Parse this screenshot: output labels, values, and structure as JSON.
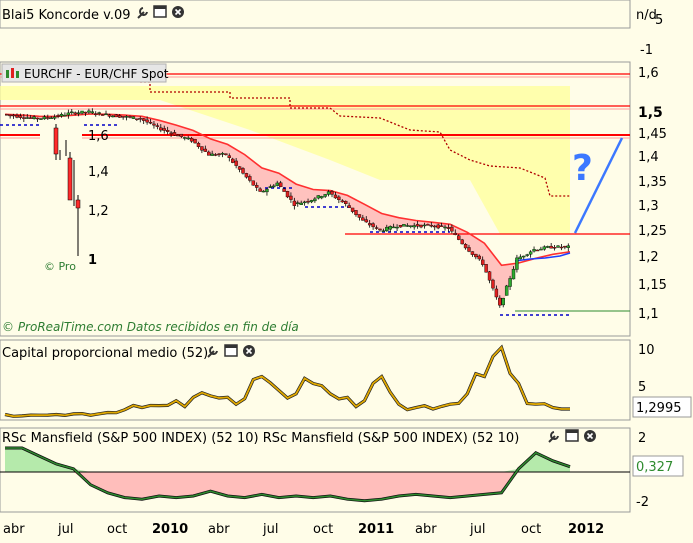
{
  "top_panel": {
    "title": "Blai5 Koncorde v.09",
    "value_label": "n/d",
    "axis": [
      "5",
      "-1"
    ]
  },
  "main_panel": {
    "instrument_label": "EURCHF - EUR/CHF Spot",
    "footer": "© ProRealTime.com Datos recibidos en fin de día",
    "question_mark": "?",
    "current_price_label": "1,5",
    "y_ticks": [
      "1,6",
      "1,5",
      "1,45",
      "1,4",
      "1,35",
      "1,3",
      "1,25",
      "1,2",
      "1,15",
      "1,1"
    ],
    "inset": {
      "y_ticks": [
        "1,6",
        "1,4",
        "1,2",
        "1"
      ],
      "footer": "© Pro"
    }
  },
  "capital_panel": {
    "title": "Capital proporcional medio (52)",
    "y_ticks": [
      "10",
      "5"
    ],
    "value_label": "1,2995"
  },
  "mansfield_panel": {
    "title": "RSc Mansfield (S&P 500 INDEX) (52 10) RSc Mansfield (S&P 500 INDEX) (52 10)",
    "y_ticks": [
      "2",
      "-2"
    ],
    "value_label": "0,327"
  },
  "x_axis": {
    "labels": [
      "abr",
      "jul",
      "oct",
      "2010",
      "abr",
      "jul",
      "oct",
      "2011",
      "abr",
      "jul",
      "oct",
      "2012"
    ],
    "bold": [
      false,
      false,
      false,
      true,
      false,
      false,
      false,
      true,
      false,
      false,
      false,
      true
    ]
  },
  "colors": {
    "background": "#fffde8",
    "trend_red": "#ff0000",
    "dotted_dark_red": "#b00000",
    "support_blue": "#0000c8",
    "ema_blue": "#1f3fff",
    "yellow_fill": "#ffff99",
    "pink_fill": "#ffb3b3",
    "oscillator_gold": "#e0a800",
    "rs_green": "#2e8b2e"
  },
  "chart_data": [
    {
      "type": "line",
      "title": "EURCHF - EUR/CHF Spot",
      "x": [
        "2009-03",
        "2009-04",
        "2009-05",
        "2009-06",
        "2009-07",
        "2009-08",
        "2009-09",
        "2009-10",
        "2009-11",
        "2009-12",
        "2010-01",
        "2010-02",
        "2010-03",
        "2010-04",
        "2010-05",
        "2010-06",
        "2010-07",
        "2010-08",
        "2010-09",
        "2010-10",
        "2010-11",
        "2010-12",
        "2011-01",
        "2011-02",
        "2011-03",
        "2011-04",
        "2011-05",
        "2011-06",
        "2011-07",
        "2011-08",
        "2011-09",
        "2011-10",
        "2011-11",
        "2011-12"
      ],
      "series": [
        {
          "name": "EURCHF",
          "values": [
            1.515,
            1.51,
            1.506,
            1.51,
            1.518,
            1.52,
            1.514,
            1.51,
            1.506,
            1.487,
            1.473,
            1.46,
            1.43,
            1.43,
            1.39,
            1.35,
            1.37,
            1.325,
            1.335,
            1.35,
            1.325,
            1.29,
            1.27,
            1.28,
            1.28,
            1.28,
            1.275,
            1.235,
            1.2,
            1.11,
            1.21,
            1.23,
            1.235,
            1.235
          ]
        }
      ],
      "ylim": [
        1.08,
        1.65
      ],
      "horizontal_levels": [
        1.6,
        1.5,
        1.445,
        1.25,
        1.11
      ],
      "projection": {
        "from": 1.25,
        "to": 1.44
      }
    },
    {
      "type": "line",
      "title": "Capital proporcional medio (52)",
      "x": [
        "2009-03",
        "2009-04",
        "2009-05",
        "2009-06",
        "2009-07",
        "2009-08",
        "2009-09",
        "2009-10",
        "2009-11",
        "2009-12",
        "2010-01",
        "2010-02",
        "2010-03",
        "2010-04",
        "2010-05",
        "2010-06",
        "2010-07",
        "2010-08",
        "2010-09",
        "2010-10",
        "2010-11",
        "2010-12",
        "2011-01",
        "2011-02",
        "2011-03",
        "2011-04",
        "2011-05",
        "2011-06",
        "2011-07",
        "2011-08",
        "2011-09",
        "2011-10",
        "2011-11",
        "2011-12"
      ],
      "series": [
        {
          "name": "Capital proporcional medio (52)",
          "values": [
            0.5,
            0.3,
            0.4,
            0.5,
            0.6,
            0.4,
            0.8,
            1.2,
            1.5,
            1.8,
            2.5,
            3.0,
            3.2,
            3.0,
            2.8,
            6.0,
            4.0,
            3.5,
            5.0,
            3.5,
            3.0,
            2.5,
            6.0,
            2.0,
            1.5,
            1.3,
            2.0,
            3.5,
            6.0,
            10.2,
            5.0,
            2.0,
            1.5,
            1.3
          ]
        }
      ],
      "ylim": [
        0,
        11
      ]
    },
    {
      "type": "area",
      "title": "RSc Mansfield (S&P 500 INDEX) (52 10)",
      "x": [
        "2009-03",
        "2009-04",
        "2009-05",
        "2009-06",
        "2009-07",
        "2009-08",
        "2009-09",
        "2009-10",
        "2009-11",
        "2009-12",
        "2010-01",
        "2010-02",
        "2010-03",
        "2010-04",
        "2010-05",
        "2010-06",
        "2010-07",
        "2010-08",
        "2010-09",
        "2010-10",
        "2010-11",
        "2010-12",
        "2011-01",
        "2011-02",
        "2011-03",
        "2011-04",
        "2011-05",
        "2011-06",
        "2011-07",
        "2011-08",
        "2011-09",
        "2011-10",
        "2011-11",
        "2011-12"
      ],
      "series": [
        {
          "name": "RSc Mansfield (S&P 500 INDEX) (52 10)",
          "values": [
            1.5,
            1.5,
            1.0,
            0.5,
            0.2,
            -0.8,
            -1.3,
            -1.6,
            -1.7,
            -1.5,
            -1.6,
            -1.5,
            -1.2,
            -1.5,
            -1.6,
            -1.4,
            -1.6,
            -1.5,
            -1.6,
            -1.5,
            -1.7,
            -1.8,
            -1.7,
            -1.5,
            -1.4,
            -1.5,
            -1.6,
            -1.5,
            -1.4,
            -1.3,
            0.2,
            1.2,
            0.7,
            0.33
          ]
        }
      ],
      "ylim": [
        -2.5,
        2.5
      ]
    }
  ]
}
